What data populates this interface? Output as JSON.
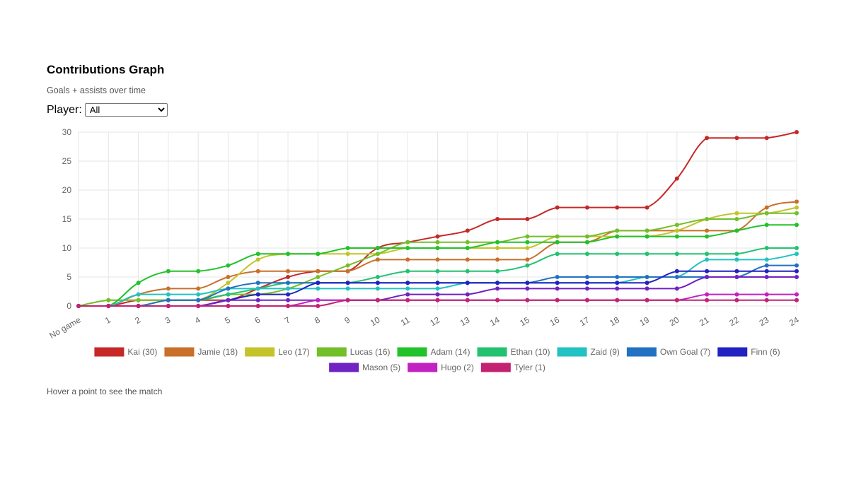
{
  "header": {
    "title": "Contributions Graph",
    "subtitle": "Goals + assists over time",
    "player_label": "Player:",
    "player_selected": "All"
  },
  "footer": {
    "hover_note": "Hover a point to see the match"
  },
  "chart_data": {
    "type": "line",
    "title": "",
    "xlabel": "",
    "ylabel": "",
    "ylim": [
      0,
      30
    ],
    "yticks": [
      0,
      5,
      10,
      15,
      20,
      25,
      30
    ],
    "grid": true,
    "legend_position": "bottom",
    "categories": [
      "No game",
      "1",
      "2",
      "3",
      "4",
      "5",
      "6",
      "7",
      "8",
      "9",
      "10",
      "11",
      "12",
      "13",
      "14",
      "15",
      "16",
      "17",
      "18",
      "19",
      "20",
      "21",
      "22",
      "23",
      "24"
    ],
    "series": [
      {
        "name": "Kai (30)",
        "color": "#c62828",
        "values": [
          0,
          0,
          1,
          1,
          1,
          1,
          3,
          5,
          6,
          6,
          10,
          11,
          12,
          13,
          15,
          15,
          17,
          17,
          17,
          17,
          22,
          29,
          29,
          29,
          30
        ]
      },
      {
        "name": "Jamie (18)",
        "color": "#c8702a",
        "values": [
          0,
          0,
          2,
          3,
          3,
          5,
          6,
          6,
          6,
          6,
          8,
          8,
          8,
          8,
          8,
          8,
          11,
          11,
          13,
          13,
          13,
          13,
          13,
          17,
          18
        ]
      },
      {
        "name": "Leo (17)",
        "color": "#c3c42a",
        "values": [
          0,
          1,
          1,
          1,
          1,
          4,
          8,
          9,
          9,
          9,
          9,
          10,
          10,
          10,
          10,
          10,
          12,
          12,
          12,
          12,
          13,
          15,
          16,
          16,
          17
        ]
      },
      {
        "name": "Lucas (16)",
        "color": "#73bf2a",
        "values": [
          0,
          1,
          1,
          1,
          1,
          2,
          2,
          3,
          5,
          7,
          9,
          11,
          11,
          11,
          11,
          12,
          12,
          12,
          13,
          13,
          14,
          15,
          15,
          16,
          16
        ]
      },
      {
        "name": "Adam (14)",
        "color": "#22c22a",
        "values": [
          0,
          0,
          4,
          6,
          6,
          7,
          9,
          9,
          9,
          10,
          10,
          10,
          10,
          10,
          11,
          11,
          11,
          11,
          12,
          12,
          12,
          12,
          13,
          14,
          14
        ]
      },
      {
        "name": "Ethan (10)",
        "color": "#22c271",
        "values": [
          0,
          0,
          0,
          1,
          1,
          2,
          3,
          4,
          4,
          4,
          5,
          6,
          6,
          6,
          6,
          7,
          9,
          9,
          9,
          9,
          9,
          9,
          9,
          10,
          10
        ]
      },
      {
        "name": "Zaid (9)",
        "color": "#22c2c2",
        "values": [
          0,
          0,
          2,
          2,
          2,
          3,
          3,
          3,
          3,
          3,
          3,
          3,
          3,
          4,
          4,
          4,
          4,
          4,
          4,
          5,
          5,
          8,
          8,
          8,
          9
        ]
      },
      {
        "name": "Own Goal (7)",
        "color": "#2271c2",
        "values": [
          0,
          0,
          0,
          1,
          1,
          3,
          4,
          4,
          4,
          4,
          4,
          4,
          4,
          4,
          4,
          4,
          5,
          5,
          5,
          5,
          5,
          5,
          5,
          7,
          7
        ]
      },
      {
        "name": "Finn (6)",
        "color": "#2222c2",
        "values": [
          0,
          0,
          0,
          0,
          0,
          1,
          2,
          2,
          4,
          4,
          4,
          4,
          4,
          4,
          4,
          4,
          4,
          4,
          4,
          4,
          6,
          6,
          6,
          6,
          6
        ]
      },
      {
        "name": "Mason (5)",
        "color": "#7122c2",
        "values": [
          0,
          0,
          0,
          0,
          0,
          1,
          1,
          1,
          1,
          1,
          1,
          2,
          2,
          2,
          3,
          3,
          3,
          3,
          3,
          3,
          3,
          5,
          5,
          5,
          5
        ]
      },
      {
        "name": "Hugo (2)",
        "color": "#c222c2",
        "values": [
          0,
          0,
          0,
          0,
          0,
          0,
          0,
          0,
          1,
          1,
          1,
          1,
          1,
          1,
          1,
          1,
          1,
          1,
          1,
          1,
          1,
          2,
          2,
          2,
          2
        ]
      },
      {
        "name": "Tyler (1)",
        "color": "#c22271",
        "values": [
          0,
          0,
          0,
          0,
          0,
          0,
          0,
          0,
          0,
          1,
          1,
          1,
          1,
          1,
          1,
          1,
          1,
          1,
          1,
          1,
          1,
          1,
          1,
          1,
          1
        ]
      }
    ]
  }
}
